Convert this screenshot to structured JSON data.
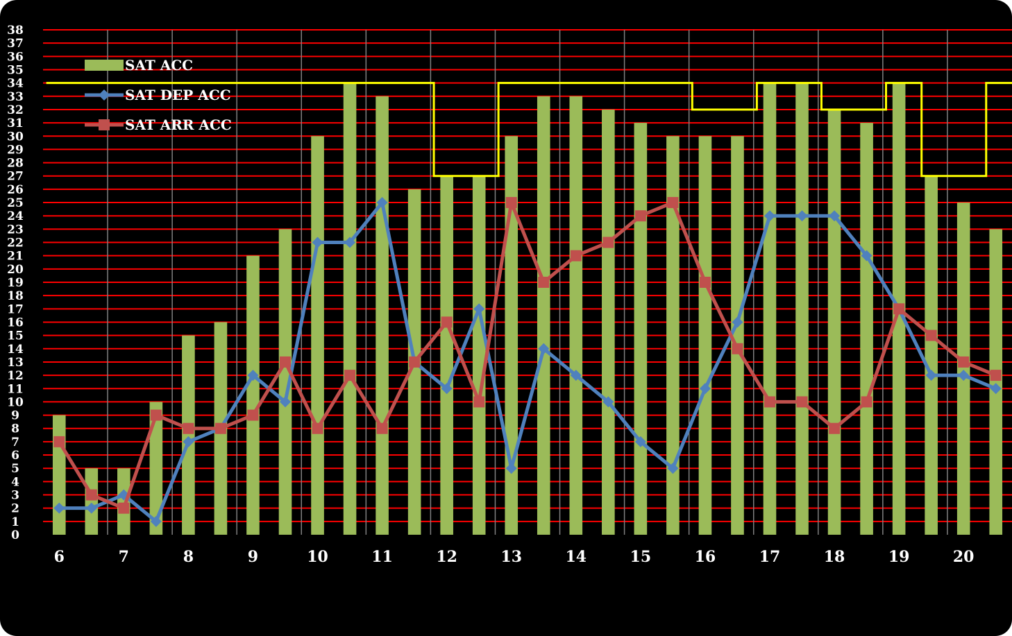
{
  "chart_data": {
    "type": "bar+line",
    "title": "",
    "xlabel": "",
    "ylabel": "",
    "ylim": [
      0,
      38
    ],
    "y_ticks": [
      0,
      1,
      2,
      3,
      4,
      5,
      6,
      7,
      8,
      9,
      10,
      11,
      12,
      13,
      14,
      15,
      16,
      17,
      18,
      19,
      20,
      21,
      22,
      23,
      24,
      25,
      26,
      27,
      28,
      29,
      30,
      31,
      32,
      33,
      34,
      35,
      36,
      37,
      38
    ],
    "x_tick_labels": [
      "6",
      "7",
      "8",
      "9",
      "10",
      "11",
      "12",
      "13",
      "14",
      "15",
      "16",
      "17",
      "18",
      "19",
      "20"
    ],
    "slots_per_hour": 2,
    "grid": {
      "horizontal": true,
      "vertical": true,
      "horizontal_color": "#ff0000",
      "vertical_color": "#808080"
    },
    "legend": {
      "placement": "top-left",
      "entries": [
        "SAT ACC",
        "SAT DEP ACC",
        "SAT ARR ACC"
      ]
    },
    "series": [
      {
        "name": "SAT ACC",
        "kind": "bar",
        "color": "#9bbb59",
        "values": [
          9,
          5,
          5,
          10,
          15,
          16,
          21,
          23,
          30,
          34,
          33,
          26,
          27,
          27,
          30,
          33,
          33,
          32,
          31,
          30,
          30,
          30,
          34,
          34,
          32,
          31,
          34,
          27,
          25,
          23
        ]
      },
      {
        "name": "SAT DEP ACC",
        "kind": "line",
        "marker": "diamond",
        "color": "#4f81bd",
        "values": [
          2,
          2,
          3,
          1,
          7,
          8,
          12,
          10,
          22,
          22,
          25,
          13,
          11,
          17,
          5,
          14,
          12,
          10,
          7,
          5,
          11,
          16,
          24,
          24,
          24,
          21,
          17,
          12,
          12,
          11
        ]
      },
      {
        "name": "SAT ARR ACC",
        "kind": "line",
        "marker": "square",
        "color": "#c0504d",
        "values": [
          7,
          3,
          2,
          9,
          8,
          8,
          9,
          13,
          8,
          12,
          8,
          13,
          16,
          10,
          25,
          19,
          21,
          22,
          24,
          25,
          19,
          14,
          10,
          10,
          8,
          10,
          17,
          15,
          13,
          12
        ]
      }
    ],
    "capacity_line": {
      "color": "#ffff00",
      "steps": [
        {
          "from_hour": 5.8,
          "to_hour": 11.8,
          "value": 34
        },
        {
          "from_hour": 11.8,
          "to_hour": 12.8,
          "value": 27
        },
        {
          "from_hour": 12.8,
          "to_hour": 15.8,
          "value": 34
        },
        {
          "from_hour": 15.8,
          "to_hour": 16.8,
          "value": 32
        },
        {
          "from_hour": 16.8,
          "to_hour": 17.8,
          "value": 34
        },
        {
          "from_hour": 17.8,
          "to_hour": 18.8,
          "value": 32
        },
        {
          "from_hour": 18.8,
          "to_hour": 19.35,
          "value": 34
        },
        {
          "from_hour": 19.35,
          "to_hour": 20.35,
          "value": 27
        },
        {
          "from_hour": 20.35,
          "to_hour": 20.95,
          "value": 34
        }
      ]
    }
  }
}
